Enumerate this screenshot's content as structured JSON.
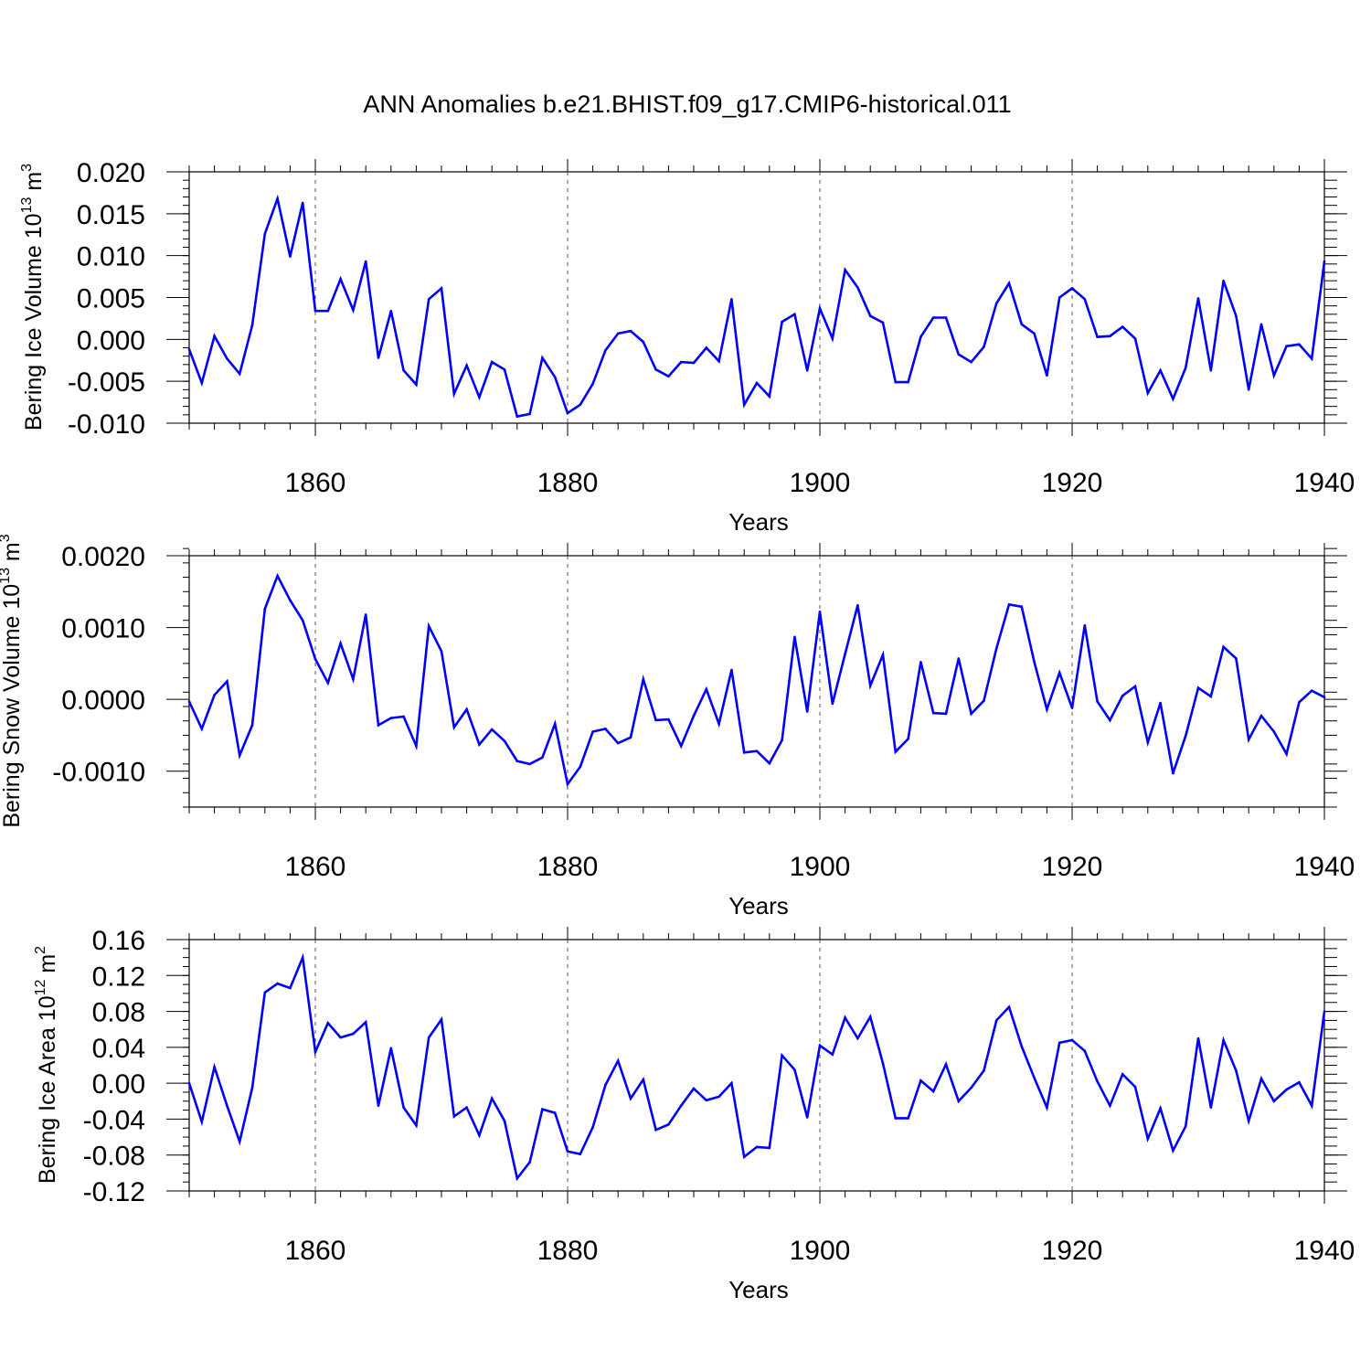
{
  "title": "ANN Anomalies b.e21.BHIST.f09_g17.CMIP6-historical.011",
  "line_color": "#0000ff",
  "chart_data": [
    {
      "type": "line",
      "ylabel_main": "Bering Ice Volume 10",
      "ylabel_sup": "13",
      "ylabel_unit": " m",
      "ylabel_unit_sup": "3",
      "xlabel": "Years",
      "xlim": [
        1850,
        1940
      ],
      "ylim": [
        -0.01,
        0.02
      ],
      "x_ticks": [
        "1860",
        "1880",
        "1900",
        "1920",
        "1940"
      ],
      "y_ticks": [
        "-0.010",
        "-0.005",
        "0.000",
        "0.005",
        "0.010",
        "0.015",
        "0.020"
      ],
      "x": [
        1850,
        1851,
        1852,
        1853,
        1854,
        1855,
        1856,
        1857,
        1858,
        1859,
        1860,
        1861,
        1862,
        1863,
        1864,
        1865,
        1866,
        1867,
        1868,
        1869,
        1870,
        1871,
        1872,
        1873,
        1874,
        1875,
        1876,
        1877,
        1878,
        1879,
        1880,
        1881,
        1882,
        1883,
        1884,
        1885,
        1886,
        1887,
        1888,
        1889,
        1890,
        1891,
        1892,
        1893,
        1894,
        1895,
        1896,
        1897,
        1898,
        1899,
        1900,
        1901,
        1902,
        1903,
        1904,
        1905,
        1906,
        1907,
        1908,
        1909,
        1910,
        1911,
        1912,
        1913,
        1914,
        1915,
        1916,
        1917,
        1918,
        1919,
        1920,
        1921,
        1922,
        1923,
        1924,
        1925,
        1926,
        1927,
        1928,
        1929,
        1930,
        1931,
        1932,
        1933,
        1934,
        1935,
        1936,
        1937,
        1938,
        1939,
        1940
      ],
      "values": [
        -0.0012,
        -0.0052,
        0.0004,
        -0.0023,
        -0.0041,
        0.0017,
        0.0126,
        0.0168,
        0.0099,
        0.0163,
        0.0034,
        0.0034,
        0.0072,
        0.0035,
        0.0093,
        -0.0022,
        0.0034,
        -0.0037,
        -0.0054,
        0.0048,
        0.0061,
        -0.0065,
        -0.0031,
        -0.0069,
        -0.0027,
        -0.0036,
        -0.0092,
        -0.0089,
        -0.0022,
        -0.0045,
        -0.0088,
        -0.0078,
        -0.0053,
        -0.0013,
        0.0007,
        0.001,
        -0.0003,
        -0.0036,
        -0.0044,
        -0.0027,
        -0.0028,
        -0.001,
        -0.0026,
        0.0048,
        -0.0078,
        -0.0052,
        -0.0068,
        0.0021,
        0.003,
        -0.0037,
        0.0037,
        0.0001,
        0.0083,
        0.0062,
        0.0028,
        0.002,
        -0.0051,
        -0.0051,
        0.0003,
        0.0026,
        0.0026,
        -0.0018,
        -0.0027,
        -0.0009,
        0.0043,
        0.0067,
        0.0018,
        0.0007,
        -0.0043,
        0.005,
        0.0061,
        0.0048,
        0.0003,
        0.0004,
        0.0015,
        0.0001,
        -0.0064,
        -0.0037,
        -0.0071,
        -0.0034,
        0.0049,
        -0.0037,
        0.007,
        0.0028,
        -0.006,
        0.0018,
        -0.0043,
        -0.0008,
        -0.0006,
        -0.0023,
        0.0093
      ]
    },
    {
      "type": "line",
      "ylabel_main": "Bering Snow Volume 10",
      "ylabel_sup": "13",
      "ylabel_unit": " m",
      "ylabel_unit_sup": "3",
      "xlabel": "Years",
      "xlim": [
        1850,
        1940
      ],
      "ylim": [
        -0.0015,
        0.002
      ],
      "x_ticks": [
        "1860",
        "1880",
        "1900",
        "1920",
        "1940"
      ],
      "y_ticks": [
        "-0.0010",
        "0.0000",
        "0.0010",
        "0.0020"
      ],
      "x": [
        1850,
        1851,
        1852,
        1853,
        1854,
        1855,
        1856,
        1857,
        1858,
        1859,
        1860,
        1861,
        1862,
        1863,
        1864,
        1865,
        1866,
        1867,
        1868,
        1869,
        1870,
        1871,
        1872,
        1873,
        1874,
        1875,
        1876,
        1877,
        1878,
        1879,
        1880,
        1881,
        1882,
        1883,
        1884,
        1885,
        1886,
        1887,
        1888,
        1889,
        1890,
        1891,
        1892,
        1893,
        1894,
        1895,
        1896,
        1897,
        1898,
        1899,
        1900,
        1901,
        1902,
        1903,
        1904,
        1905,
        1906,
        1907,
        1908,
        1909,
        1910,
        1911,
        1912,
        1913,
        1914,
        1915,
        1916,
        1917,
        1918,
        1919,
        1920,
        1921,
        1922,
        1923,
        1924,
        1925,
        1926,
        1927,
        1928,
        1929,
        1930,
        1931,
        1932,
        1933,
        1934,
        1935,
        1936,
        1937,
        1938,
        1939,
        1940
      ],
      "values": [
        -3e-05,
        -0.00041,
        6e-05,
        0.00025,
        -0.00078,
        -0.00036,
        0.00126,
        0.00172,
        0.00138,
        0.0011,
        0.00056,
        0.00023,
        0.00078,
        0.00028,
        0.00118,
        -0.00036,
        -0.00026,
        -0.00024,
        -0.00065,
        0.00102,
        0.00067,
        -0.00039,
        -0.00014,
        -0.00063,
        -0.00042,
        -0.00058,
        -0.00086,
        -0.0009,
        -0.00081,
        -0.00034,
        -0.00118,
        -0.00094,
        -0.00045,
        -0.00041,
        -0.00061,
        -0.00053,
        0.00028,
        -0.00029,
        -0.00028,
        -0.00065,
        -0.00023,
        0.00014,
        -0.00034,
        0.00041,
        -0.00074,
        -0.00072,
        -0.00089,
        -0.00057,
        0.00087,
        -0.00017,
        0.00122,
        -6e-05,
        0.00063,
        0.00131,
        0.00019,
        0.00062,
        -0.00073,
        -0.00055,
        0.00052,
        -0.00019,
        -0.0002,
        0.00057,
        -0.0002,
        -2e-05,
        0.00071,
        0.00132,
        0.00129,
        0.00052,
        -0.00014,
        0.00037,
        -0.00012,
        0.00103,
        -3e-05,
        -0.00029,
        5e-05,
        0.00018,
        -0.0006,
        -5e-05,
        -0.00103,
        -0.00051,
        0.00016,
        4e-05,
        0.00073,
        0.00057,
        -0.00056,
        -0.00023,
        -0.00045,
        -0.00076,
        -4e-05,
        0.00012,
        3e-05
      ]
    },
    {
      "type": "line",
      "ylabel_main": "Bering Ice Area 10",
      "ylabel_sup": "12",
      "ylabel_unit": " m",
      "ylabel_unit_sup": "2",
      "xlabel": "Years",
      "xlim": [
        1850,
        1940
      ],
      "ylim": [
        -0.12,
        0.16
      ],
      "x_ticks": [
        "1860",
        "1880",
        "1900",
        "1920",
        "1940"
      ],
      "y_ticks": [
        "-0.12",
        "-0.08",
        "-0.04",
        "0.00",
        "0.04",
        "0.08",
        "0.12",
        "0.16"
      ],
      "x": [
        1850,
        1851,
        1852,
        1853,
        1854,
        1855,
        1856,
        1857,
        1858,
        1859,
        1860,
        1861,
        1862,
        1863,
        1864,
        1865,
        1866,
        1867,
        1868,
        1869,
        1870,
        1871,
        1872,
        1873,
        1874,
        1875,
        1876,
        1877,
        1878,
        1879,
        1880,
        1881,
        1882,
        1883,
        1884,
        1885,
        1886,
        1887,
        1888,
        1889,
        1890,
        1891,
        1892,
        1893,
        1894,
        1895,
        1896,
        1897,
        1898,
        1899,
        1900,
        1901,
        1902,
        1903,
        1904,
        1905,
        1906,
        1907,
        1908,
        1909,
        1910,
        1911,
        1912,
        1913,
        1914,
        1915,
        1916,
        1917,
        1918,
        1919,
        1920,
        1921,
        1922,
        1923,
        1924,
        1925,
        1926,
        1927,
        1928,
        1929,
        1930,
        1931,
        1932,
        1933,
        1934,
        1935,
        1936,
        1937,
        1938,
        1939,
        1940
      ],
      "values": [
        0.0,
        -0.043,
        0.018,
        -0.025,
        -0.065,
        -0.005,
        0.101,
        0.111,
        0.106,
        0.14,
        0.035,
        0.067,
        0.051,
        0.055,
        0.068,
        -0.025,
        0.039,
        -0.027,
        -0.047,
        0.051,
        0.071,
        -0.037,
        -0.027,
        -0.058,
        -0.017,
        -0.042,
        -0.106,
        -0.088,
        -0.029,
        -0.033,
        -0.076,
        -0.079,
        -0.049,
        -0.002,
        0.025,
        -0.017,
        0.004,
        -0.052,
        -0.046,
        -0.025,
        -0.006,
        -0.019,
        -0.015,
        0.0,
        -0.082,
        -0.071,
        -0.072,
        0.031,
        0.015,
        -0.038,
        0.042,
        0.032,
        0.073,
        0.05,
        0.074,
        0.022,
        -0.039,
        -0.039,
        0.003,
        -0.009,
        0.021,
        -0.02,
        -0.005,
        0.014,
        0.07,
        0.085,
        0.041,
        0.006,
        -0.027,
        0.045,
        0.048,
        0.036,
        0.002,
        -0.025,
        0.01,
        -0.004,
        -0.062,
        -0.028,
        -0.075,
        -0.048,
        0.05,
        -0.027,
        0.048,
        0.014,
        -0.042,
        0.005,
        -0.02,
        -0.007,
        0.001,
        -0.025,
        0.08
      ]
    }
  ]
}
